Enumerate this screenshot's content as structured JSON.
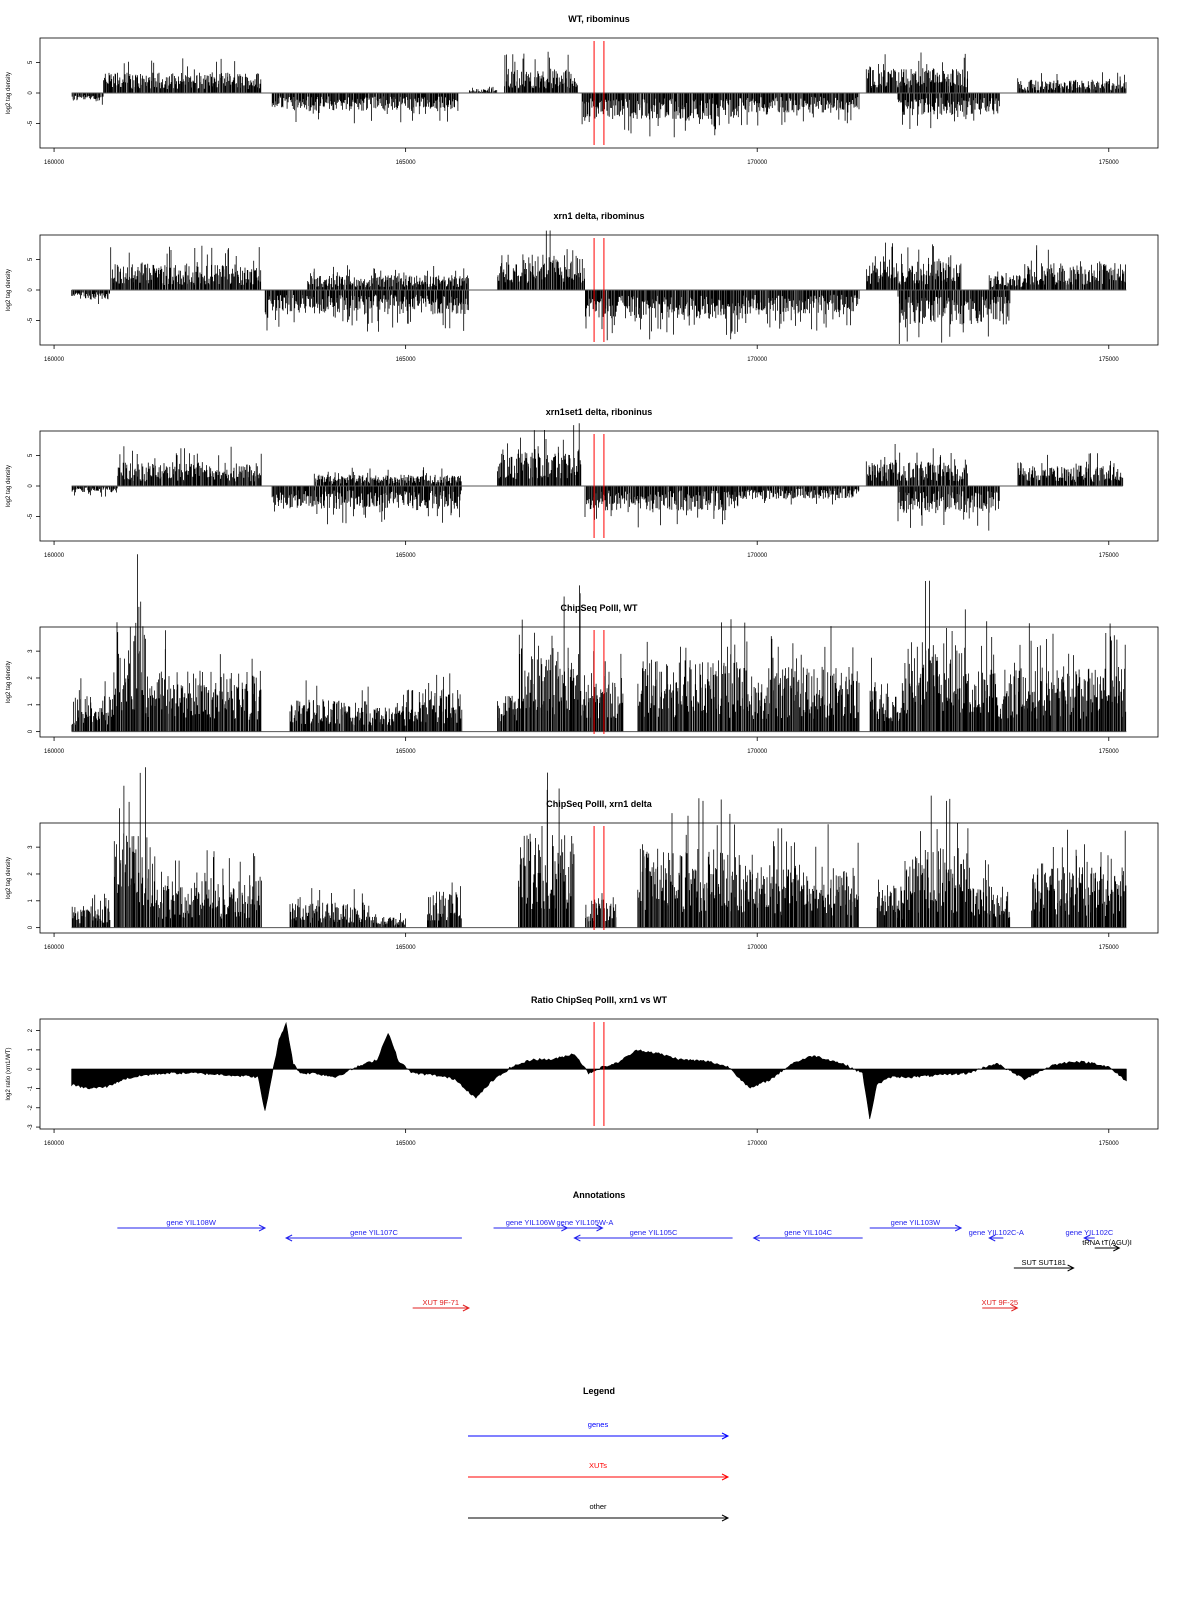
{
  "figure": {
    "x_range": [
      159800,
      175700
    ],
    "x_ticks": [
      160000,
      165000,
      170000,
      175000
    ],
    "marker_lines": [
      167680,
      167820
    ],
    "marker_color": "#ff0000"
  },
  "chart_data": [
    {
      "type": "bar",
      "title": "WT, ribominus",
      "ylabel": "log2 tag density",
      "ylim": [
        -9,
        9
      ],
      "yticks": [
        -5,
        0,
        5
      ],
      "ytick_labels": [
        "-5",
        "0",
        "5"
      ],
      "baseline": 0,
      "segments": [
        {
          "start": 160250,
          "end": 160700,
          "strand": "minus",
          "level": 1.0
        },
        {
          "start": 160700,
          "end": 162950,
          "strand": "plus",
          "level": 2.5
        },
        {
          "start": 163100,
          "end": 165750,
          "strand": "minus",
          "level": 2.2
        },
        {
          "start": 165900,
          "end": 166300,
          "strand": "plus",
          "level": 0.5
        },
        {
          "start": 166400,
          "end": 167450,
          "strand": "plus",
          "level": 3.0
        },
        {
          "start": 167500,
          "end": 169750,
          "strand": "minus",
          "level": 3.2
        },
        {
          "start": 169750,
          "end": 171450,
          "strand": "minus",
          "level": 2.4
        },
        {
          "start": 171550,
          "end": 173000,
          "strand": "plus",
          "level": 3.0
        },
        {
          "start": 172000,
          "end": 173450,
          "strand": "minus",
          "level": 2.7
        },
        {
          "start": 173700,
          "end": 175250,
          "strand": "plus",
          "level": 1.6
        }
      ]
    },
    {
      "type": "bar",
      "title": "xrn1 delta, ribominus",
      "ylabel": "log2 tag density",
      "ylim": [
        -9,
        9
      ],
      "yticks": [
        -5,
        0,
        5
      ],
      "ytick_labels": [
        "-5",
        "0",
        "5"
      ],
      "baseline": 0,
      "segments": [
        {
          "start": 160250,
          "end": 160800,
          "strand": "minus",
          "level": 1.2
        },
        {
          "start": 160800,
          "end": 162950,
          "strand": "plus",
          "level": 3.2
        },
        {
          "start": 163000,
          "end": 165900,
          "strand": "minus",
          "level": 3.0
        },
        {
          "start": 163600,
          "end": 165900,
          "strand": "plus",
          "level": 1.8
        },
        {
          "start": 166300,
          "end": 167550,
          "strand": "plus",
          "level": 4.5
        },
        {
          "start": 167550,
          "end": 169800,
          "strand": "minus",
          "level": 3.6
        },
        {
          "start": 169800,
          "end": 171450,
          "strand": "minus",
          "level": 3.0
        },
        {
          "start": 171550,
          "end": 172900,
          "strand": "plus",
          "level": 3.5
        },
        {
          "start": 172000,
          "end": 173600,
          "strand": "minus",
          "level": 4.2
        },
        {
          "start": 173300,
          "end": 173800,
          "strand": "plus",
          "level": 1.8
        },
        {
          "start": 173800,
          "end": 175250,
          "strand": "plus",
          "level": 3.3
        }
      ]
    },
    {
      "type": "bar",
      "title": "xrn1set1 delta, riboninus",
      "ylabel": "log2 tag density",
      "ylim": [
        -9,
        9
      ],
      "yticks": [
        -5,
        0,
        5
      ],
      "ytick_labels": [
        "-5",
        "0",
        "5"
      ],
      "baseline": 0,
      "segments": [
        {
          "start": 160250,
          "end": 160900,
          "strand": "minus",
          "level": 0.8
        },
        {
          "start": 160900,
          "end": 162950,
          "strand": "plus",
          "level": 3.0
        },
        {
          "start": 163100,
          "end": 165800,
          "strand": "minus",
          "level": 2.8
        },
        {
          "start": 163700,
          "end": 165800,
          "strand": "plus",
          "level": 1.4
        },
        {
          "start": 166300,
          "end": 167500,
          "strand": "plus",
          "level": 4.5
        },
        {
          "start": 167550,
          "end": 169800,
          "strand": "minus",
          "level": 3.0
        },
        {
          "start": 169800,
          "end": 171450,
          "strand": "minus",
          "level": 1.6
        },
        {
          "start": 171550,
          "end": 173000,
          "strand": "plus",
          "level": 3.0
        },
        {
          "start": 172000,
          "end": 173450,
          "strand": "minus",
          "level": 3.3
        },
        {
          "start": 173700,
          "end": 175200,
          "strand": "plus",
          "level": 2.5
        }
      ]
    },
    {
      "type": "bar",
      "title": "ChipSeq PolII, WT",
      "ylabel": "log2 tag density",
      "ylim": [
        -0.2,
        3.9
      ],
      "yticks": [
        0,
        1,
        2,
        3
      ],
      "ytick_labels": [
        "0",
        "1",
        "2",
        "3"
      ],
      "baseline": 0,
      "segments": [
        {
          "start": 160250,
          "end": 160850,
          "strand": "plus",
          "level": 1.0
        },
        {
          "start": 160850,
          "end": 161300,
          "strand": "plus",
          "level": 3.1
        },
        {
          "start": 161300,
          "end": 162950,
          "strand": "plus",
          "level": 1.7
        },
        {
          "start": 163350,
          "end": 164500,
          "strand": "plus",
          "level": 0.9
        },
        {
          "start": 164500,
          "end": 165000,
          "strand": "plus",
          "level": 0.7
        },
        {
          "start": 165000,
          "end": 165800,
          "strand": "plus",
          "level": 1.2
        },
        {
          "start": 166300,
          "end": 166600,
          "strand": "plus",
          "level": 1.0
        },
        {
          "start": 166600,
          "end": 167500,
          "strand": "plus",
          "level": 2.4
        },
        {
          "start": 167500,
          "end": 168100,
          "strand": "plus",
          "level": 1.4
        },
        {
          "start": 168300,
          "end": 169800,
          "strand": "plus",
          "level": 2.0
        },
        {
          "start": 169800,
          "end": 171450,
          "strand": "plus",
          "level": 1.8
        },
        {
          "start": 171600,
          "end": 172100,
          "strand": "plus",
          "level": 1.4
        },
        {
          "start": 172100,
          "end": 173000,
          "strand": "plus",
          "level": 2.6
        },
        {
          "start": 173000,
          "end": 173800,
          "strand": "plus",
          "level": 1.8
        },
        {
          "start": 173800,
          "end": 175250,
          "strand": "plus",
          "level": 1.8
        }
      ]
    },
    {
      "type": "bar",
      "title": "ChipSeq PolII, xrn1 delta",
      "ylabel": "log2 tag density",
      "ylim": [
        -0.2,
        3.9
      ],
      "yticks": [
        0,
        1,
        2,
        3
      ],
      "ytick_labels": [
        "0",
        "1",
        "2",
        "3"
      ],
      "baseline": 0,
      "segments": [
        {
          "start": 160250,
          "end": 160800,
          "strand": "plus",
          "level": 0.6
        },
        {
          "start": 160850,
          "end": 161400,
          "strand": "plus",
          "level": 2.7
        },
        {
          "start": 161400,
          "end": 162950,
          "strand": "plus",
          "level": 1.3
        },
        {
          "start": 163350,
          "end": 164500,
          "strand": "plus",
          "level": 0.7
        },
        {
          "start": 164500,
          "end": 165000,
          "strand": "plus",
          "level": 0.3
        },
        {
          "start": 165300,
          "end": 165800,
          "strand": "plus",
          "level": 1.0
        },
        {
          "start": 166600,
          "end": 167400,
          "strand": "plus",
          "level": 2.6
        },
        {
          "start": 167550,
          "end": 168000,
          "strand": "plus",
          "level": 0.9
        },
        {
          "start": 168300,
          "end": 169800,
          "strand": "plus",
          "level": 2.2
        },
        {
          "start": 169800,
          "end": 171450,
          "strand": "plus",
          "level": 1.8
        },
        {
          "start": 171700,
          "end": 172100,
          "strand": "plus",
          "level": 1.2
        },
        {
          "start": 172100,
          "end": 173000,
          "strand": "plus",
          "level": 2.2
        },
        {
          "start": 173000,
          "end": 173600,
          "strand": "plus",
          "level": 1.2
        },
        {
          "start": 173900,
          "end": 175250,
          "strand": "plus",
          "level": 1.7
        }
      ]
    },
    {
      "type": "area",
      "title": "Ratio ChipSeq PolII, xrn1 vs WT",
      "ylabel": "log2 ratio (xrn1/WT)",
      "ylim": [
        -3.1,
        2.6
      ],
      "yticks": [
        -3,
        -2,
        -1,
        0,
        1,
        2
      ],
      "ytick_labels": [
        "-3",
        "-2",
        "-1",
        "0",
        "1",
        "2"
      ],
      "baseline": 0,
      "x": [
        160250,
        160500,
        160750,
        161000,
        161300,
        161600,
        162000,
        162500,
        162900,
        163000,
        163100,
        163200,
        163300,
        163400,
        163500,
        163700,
        164000,
        164300,
        164600,
        164750,
        164900,
        165100,
        165400,
        165700,
        165850,
        166000,
        166200,
        166500,
        166800,
        167100,
        167400,
        167600,
        167800,
        168000,
        168300,
        168600,
        168900,
        169300,
        169600,
        169900,
        170200,
        170500,
        170800,
        171200,
        171500,
        171600,
        171700,
        171900,
        172200,
        172600,
        173000,
        173400,
        173800,
        174200,
        174500,
        174800,
        175000,
        175250
      ],
      "y": [
        -0.8,
        -1.0,
        -0.9,
        -0.5,
        -0.3,
        -0.2,
        -0.2,
        -0.3,
        -0.4,
        -2.2,
        -0.3,
        1.5,
        2.4,
        0.3,
        -0.2,
        -0.2,
        -0.4,
        0.1,
        0.5,
        1.9,
        0.4,
        -0.2,
        -0.3,
        -0.5,
        -1.0,
        -1.5,
        -0.7,
        0.1,
        0.5,
        0.5,
        0.8,
        -0.2,
        0.1,
        0.3,
        1.0,
        0.8,
        0.5,
        0.4,
        0.1,
        -1.0,
        -0.5,
        0.3,
        0.7,
        0.3,
        -0.2,
        -2.6,
        -0.8,
        -0.4,
        -0.4,
        -0.3,
        -0.2,
        0.3,
        -0.5,
        0.2,
        0.4,
        0.3,
        0.1,
        -0.6
      ]
    }
  ],
  "annotations": {
    "title": "Annotations",
    "features": [
      {
        "label": "gene YIL108W",
        "type": "gene",
        "start": 160900,
        "end": 163000,
        "dir": "right",
        "row": 0
      },
      {
        "label": "gene YIL107C",
        "type": "gene",
        "start": 163300,
        "end": 165800,
        "dir": "left",
        "row": 1
      },
      {
        "label": "gene YIL106W",
        "type": "gene",
        "start": 166250,
        "end": 167300,
        "dir": "right",
        "row": 0
      },
      {
        "label": "gene YIL105W-A",
        "type": "gene",
        "start": 167300,
        "end": 167800,
        "dir": "right",
        "row": 0
      },
      {
        "label": "gene YIL105C",
        "type": "gene",
        "start": 167400,
        "end": 169650,
        "dir": "left",
        "row": 1
      },
      {
        "label": "gene YIL104C",
        "type": "gene",
        "start": 169950,
        "end": 171500,
        "dir": "left",
        "row": 1
      },
      {
        "label": "gene YIL103W",
        "type": "gene",
        "start": 171600,
        "end": 172900,
        "dir": "right",
        "row": 0
      },
      {
        "label": "gene YIL102C-A",
        "type": "gene",
        "start": 173300,
        "end": 173500,
        "dir": "left",
        "row": 1
      },
      {
        "label": "gene YIL102C",
        "type": "gene",
        "start": 174650,
        "end": 174800,
        "dir": "left",
        "row": 1
      },
      {
        "label": "tRNA tT(AGU)I",
        "type": "other",
        "start": 174800,
        "end": 175150,
        "dir": "right",
        "row": 2
      },
      {
        "label": "SUT SUT181",
        "type": "other",
        "start": 173650,
        "end": 174500,
        "dir": "right",
        "row": 3
      },
      {
        "label": "XUT 9F-71",
        "type": "xut",
        "start": 165100,
        "end": 165900,
        "dir": "right",
        "row": 5
      },
      {
        "label": "XUT 9F-25",
        "type": "xut",
        "start": 173200,
        "end": 173700,
        "dir": "right",
        "row": 5
      }
    ]
  },
  "legend": {
    "title": "Legend",
    "entries": [
      {
        "label": "genes",
        "color": "#0000ff"
      },
      {
        "label": "XUTs",
        "color": "#ff0000"
      },
      {
        "label": "other",
        "color": "#000000"
      }
    ]
  },
  "colors": {
    "gene": "#2222ee",
    "xut": "#e02020",
    "other": "#000000"
  }
}
